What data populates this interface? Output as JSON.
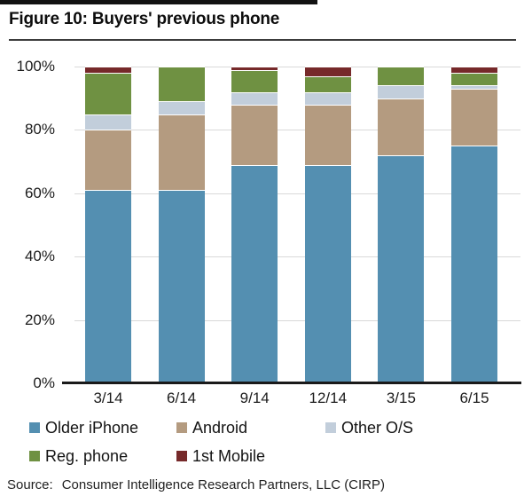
{
  "title": "Figure 10: Buyers' previous phone",
  "source": {
    "label": "Source:",
    "text": "Consumer Intelligence Research Partners, LLC (CIRP)"
  },
  "chart_data": {
    "type": "bar",
    "stacked": true,
    "title": "Figure 10: Buyers' previous phone",
    "categories": [
      "3/14",
      "6/14",
      "9/14",
      "12/14",
      "3/15",
      "6/15"
    ],
    "series": [
      {
        "name": "Older iPhone",
        "color": "#548fb1",
        "values": [
          61,
          61,
          69,
          69,
          72,
          75
        ]
      },
      {
        "name": "Android",
        "color": "#b49b80",
        "values": [
          19,
          24,
          19,
          19,
          18,
          18
        ]
      },
      {
        "name": "Other O/S",
        "color": "#c2cedb",
        "values": [
          5,
          4,
          4,
          4,
          4,
          1
        ]
      },
      {
        "name": "Reg. phone",
        "color": "#6f9142",
        "values": [
          13,
          11,
          7,
          5,
          6,
          4
        ]
      },
      {
        "name": "1st Mobile",
        "color": "#76292a",
        "values": [
          2,
          0,
          1,
          3,
          0,
          2
        ]
      }
    ],
    "y_tick_labels": [
      "100%",
      "80%",
      "60%",
      "40%",
      "20%",
      "0%"
    ],
    "y_tick_values": [
      100,
      80,
      60,
      40,
      20,
      0
    ],
    "ylim": [
      0,
      100
    ],
    "xlabel": "",
    "ylabel": "",
    "grid": true,
    "legend_position": "bottom"
  }
}
